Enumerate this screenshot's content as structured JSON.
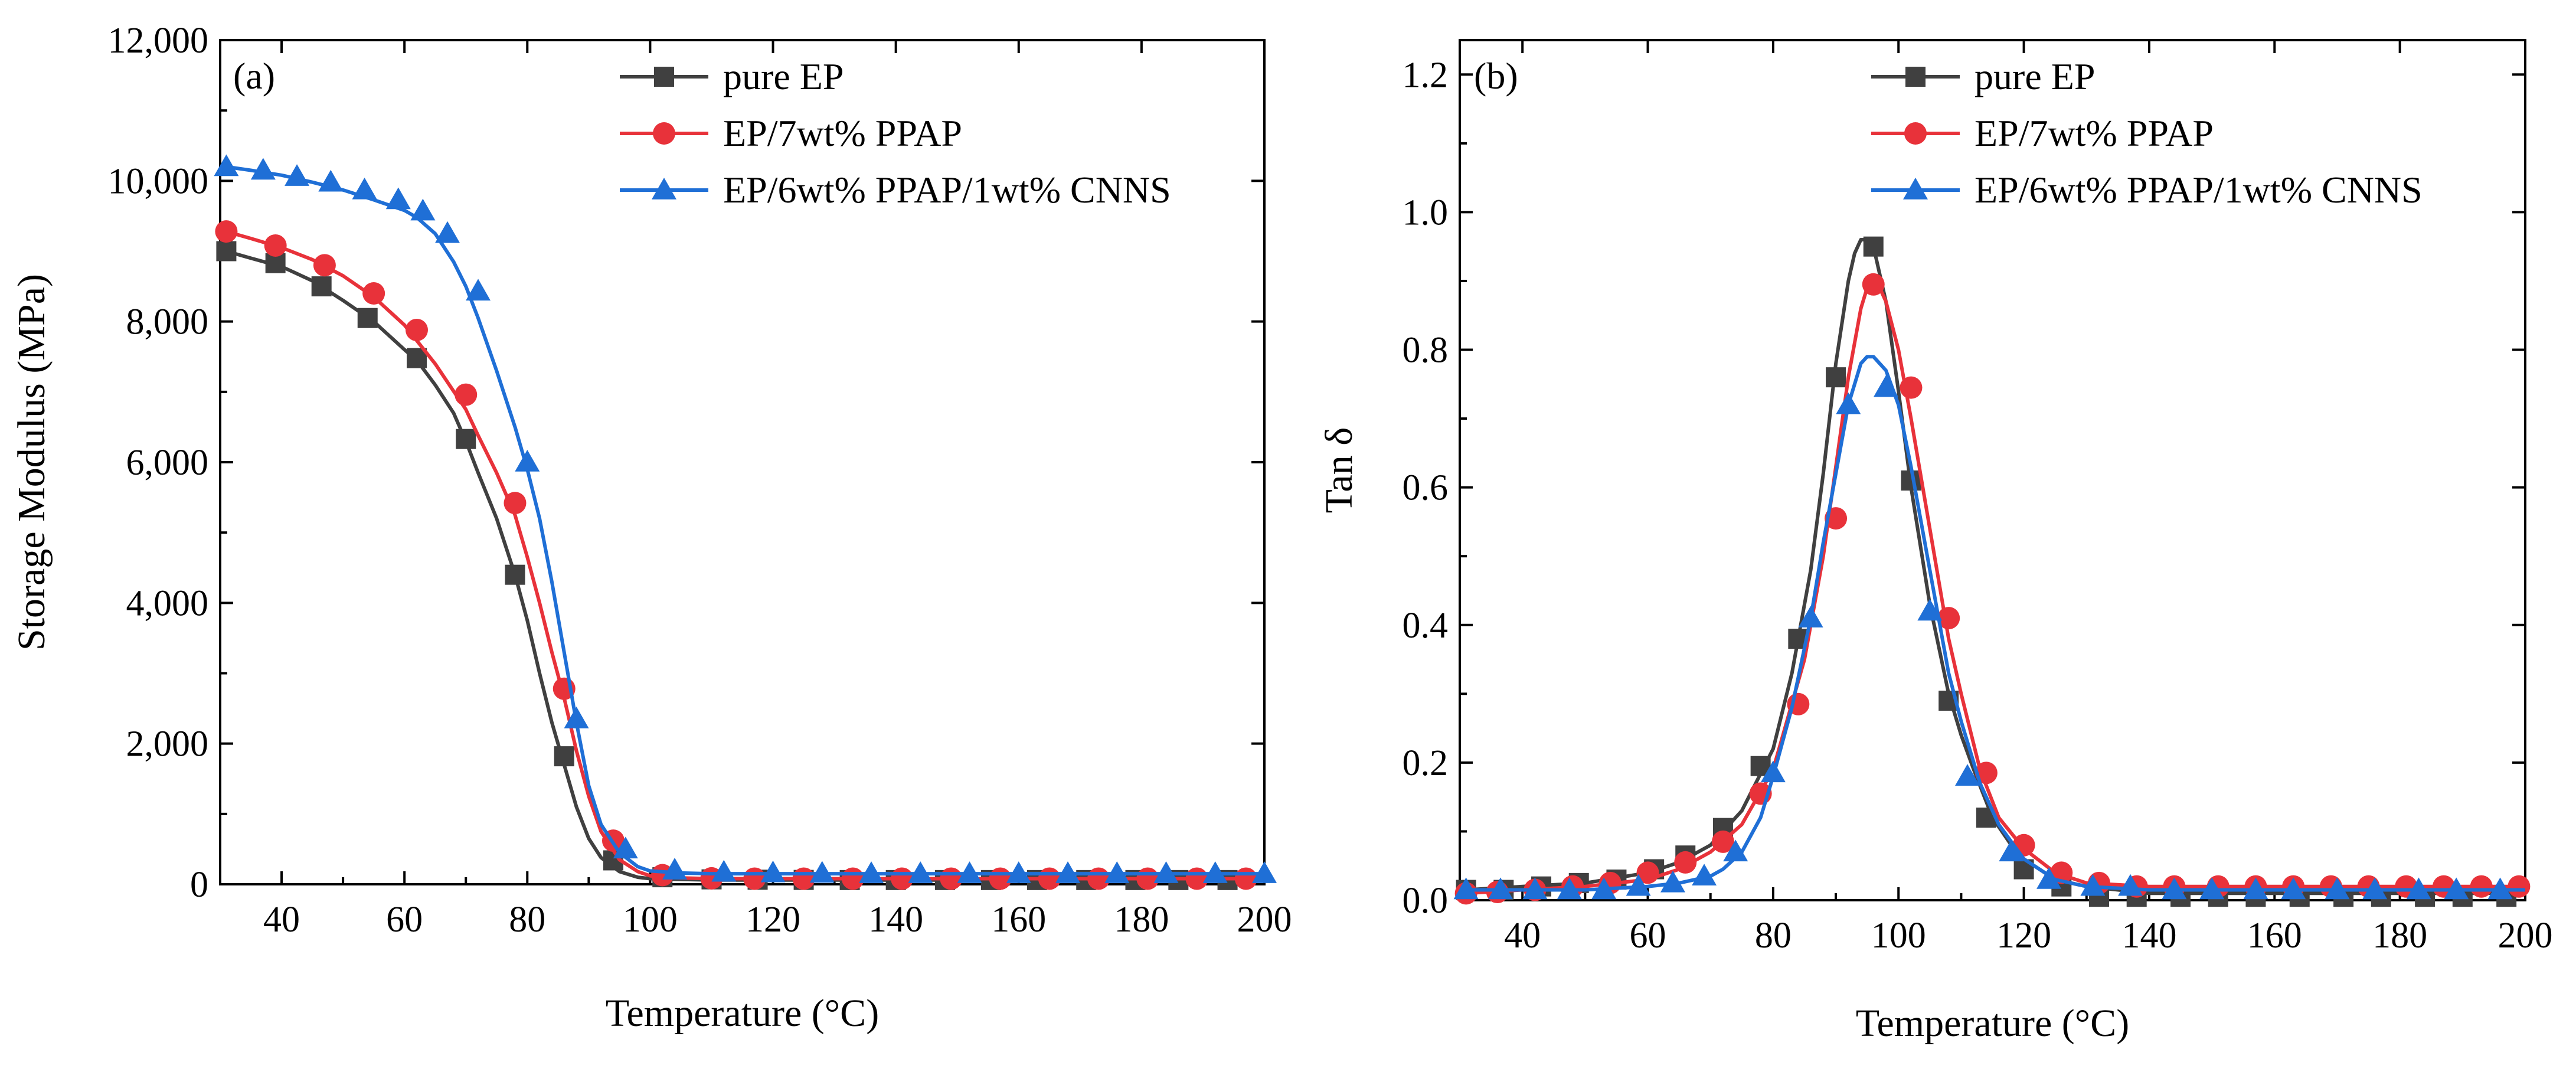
{
  "chart_data": [
    {
      "type": "line",
      "panel_label": "(a)",
      "title": "",
      "xlabel": "Temperature (°C)",
      "ylabel": "Storage Modulus (MPa)",
      "xlim": [
        30,
        200
      ],
      "ylim": [
        0,
        12000
      ],
      "xticks": [
        40,
        60,
        80,
        100,
        120,
        140,
        160,
        180,
        200
      ],
      "xtick_labels": [
        "40",
        "60",
        "80",
        "100",
        "120",
        "140",
        "160",
        "180",
        "200"
      ],
      "yticks": [
        0,
        2000,
        4000,
        6000,
        8000,
        10000,
        12000
      ],
      "ytick_labels": [
        "0",
        "2,000",
        "4,000",
        "6,000",
        "8,000",
        "10,000",
        "12,000"
      ],
      "legend_position": "top-right",
      "series": [
        {
          "name": "pure EP",
          "color": "#404040",
          "marker": "square",
          "x": [
            31,
            35,
            40,
            45,
            50,
            55,
            60,
            62,
            65,
            68,
            70,
            72,
            75,
            78,
            80,
            82,
            84,
            86,
            88,
            90,
            92,
            95,
            98,
            100,
            105,
            110,
            120,
            130,
            140,
            150,
            160,
            170,
            180,
            190,
            200
          ],
          "y": [
            9000,
            8900,
            8780,
            8580,
            8300,
            8000,
            7600,
            7450,
            7100,
            6700,
            6300,
            5850,
            5200,
            4400,
            3750,
            3000,
            2300,
            1700,
            1100,
            650,
            380,
            180,
            100,
            80,
            70,
            60,
            60,
            60,
            60,
            60,
            60,
            60,
            60,
            60,
            60
          ],
          "marker_x": [
            31,
            39,
            46.5,
            54,
            62,
            70,
            78,
            86,
            94,
            102,
            110,
            117.5,
            125,
            132.5,
            140,
            148,
            155.5,
            163,
            171,
            179,
            186,
            194
          ],
          "marker_y": [
            9000,
            8830,
            8500,
            8050,
            7480,
            6330,
            4400,
            1820,
            340,
            100,
            70,
            65,
            62,
            60,
            60,
            60,
            60,
            60,
            60,
            60,
            60,
            60
          ]
        },
        {
          "name": "EP/7wt% PPAP",
          "color": "#e8323a",
          "marker": "circle",
          "x": [
            31,
            35,
            40,
            45,
            50,
            55,
            60,
            65,
            70,
            72,
            75,
            78,
            80,
            82,
            84,
            86,
            88,
            90,
            92,
            95,
            98,
            100,
            105,
            110,
            120,
            130,
            140,
            150,
            160,
            170,
            180,
            190,
            200
          ],
          "y": [
            9280,
            9180,
            9050,
            8880,
            8650,
            8350,
            7950,
            7400,
            6750,
            6380,
            5850,
            5250,
            4650,
            4000,
            3300,
            2650,
            1900,
            1250,
            750,
            350,
            180,
            120,
            90,
            80,
            80,
            80,
            80,
            80,
            80,
            80,
            80,
            80,
            80
          ],
          "marker_x": [
            31,
            39,
            47,
            55,
            62,
            70,
            78,
            86,
            94,
            102,
            110,
            117,
            125,
            133,
            141,
            149,
            157,
            165,
            173,
            181,
            189,
            197
          ],
          "marker_y": [
            9280,
            9080,
            8800,
            8400,
            7880,
            6960,
            5420,
            2780,
            620,
            130,
            85,
            80,
            80,
            80,
            80,
            80,
            80,
            80,
            80,
            80,
            80,
            80
          ]
        },
        {
          "name": "EP/6wt% PPAP/1wt% CNNS",
          "color": "#1f6fd6",
          "marker": "triangle",
          "x": [
            31,
            35,
            40,
            45,
            50,
            55,
            60,
            62,
            65,
            68,
            70,
            72,
            75,
            78,
            80,
            82,
            84,
            86,
            88,
            90,
            92,
            95,
            98,
            100,
            105,
            110,
            120,
            130,
            140,
            150,
            160,
            170,
            180,
            190,
            200
          ],
          "y": [
            10200,
            10150,
            10080,
            9980,
            9870,
            9730,
            9580,
            9480,
            9250,
            8850,
            8500,
            8050,
            7300,
            6500,
            5900,
            5200,
            4300,
            3300,
            2300,
            1400,
            850,
            450,
            250,
            190,
            160,
            150,
            150,
            150,
            150,
            150,
            150,
            150,
            150,
            150,
            150
          ],
          "marker_x": [
            31,
            37,
            42.5,
            48,
            53.5,
            59,
            63,
            67,
            72,
            80,
            88,
            96,
            104,
            112,
            120,
            128,
            136,
            144,
            152,
            160,
            168,
            176,
            184,
            192,
            200
          ],
          "marker_y": [
            10200,
            10150,
            10060,
            9980,
            9870,
            9730,
            9570,
            9250,
            8430,
            6000,
            2350,
            500,
            200,
            170,
            160,
            155,
            150,
            150,
            150,
            150,
            150,
            150,
            150,
            150,
            150
          ]
        }
      ]
    },
    {
      "type": "line",
      "panel_label": "(b)",
      "title": "",
      "xlabel": "Temperature (°C)",
      "ylabel": "Tan δ",
      "xlim": [
        30,
        200
      ],
      "ylim": [
        0,
        1.25
      ],
      "xticks": [
        40,
        60,
        80,
        100,
        120,
        140,
        160,
        180,
        200
      ],
      "xtick_labels": [
        "40",
        "60",
        "80",
        "100",
        "120",
        "140",
        "160",
        "180",
        "200"
      ],
      "yticks": [
        0,
        0.2,
        0.4,
        0.6,
        0.8,
        1.0,
        1.2
      ],
      "ytick_labels": [
        "0.0",
        "0.2",
        "0.4",
        "0.6",
        "0.8",
        "1.0",
        "1.2"
      ],
      "legend_position": "top-right",
      "series": [
        {
          "name": "pure EP",
          "color": "#404040",
          "marker": "square",
          "x": [
            31,
            40,
            50,
            60,
            65,
            70,
            75,
            80,
            83,
            86,
            88,
            90,
            92,
            93,
            94,
            95,
            96,
            98,
            100,
            102,
            105,
            108,
            110,
            112,
            115,
            118,
            120,
            125,
            130,
            140,
            150,
            160,
            170,
            180,
            190,
            200
          ],
          "y": [
            0.015,
            0.02,
            0.025,
            0.04,
            0.055,
            0.08,
            0.13,
            0.22,
            0.33,
            0.48,
            0.62,
            0.78,
            0.9,
            0.94,
            0.96,
            0.96,
            0.95,
            0.87,
            0.74,
            0.6,
            0.43,
            0.3,
            0.24,
            0.19,
            0.12,
            0.08,
            0.06,
            0.03,
            0.02,
            0.01,
            0.01,
            0.01,
            0.01,
            0.01,
            0.01,
            0.01
          ],
          "marker_x": [
            31,
            37,
            43,
            49,
            55,
            61,
            66,
            72,
            78,
            84,
            90,
            96,
            102,
            108,
            114,
            120,
            126,
            132,
            138,
            145,
            151,
            157,
            164,
            171,
            177,
            184,
            190,
            197
          ],
          "marker_y": [
            0.015,
            0.015,
            0.02,
            0.025,
            0.03,
            0.045,
            0.065,
            0.105,
            0.195,
            0.38,
            0.76,
            0.95,
            0.61,
            0.29,
            0.12,
            0.045,
            0.02,
            0.005,
            0.005,
            0.005,
            0.005,
            0.005,
            0.005,
            0.005,
            0.005,
            0.005,
            0.005,
            0.005
          ]
        },
        {
          "name": "EP/7wt% PPAP",
          "color": "#e8323a",
          "marker": "circle",
          "x": [
            31,
            40,
            50,
            60,
            65,
            70,
            75,
            80,
            85,
            88,
            90,
            92,
            94,
            95,
            96,
            97,
            98,
            100,
            102,
            105,
            108,
            110,
            113,
            116,
            120,
            125,
            130,
            140,
            150,
            160,
            170,
            180,
            190,
            200
          ],
          "y": [
            0.01,
            0.015,
            0.02,
            0.03,
            0.045,
            0.07,
            0.11,
            0.19,
            0.35,
            0.5,
            0.63,
            0.76,
            0.86,
            0.89,
            0.9,
            0.89,
            0.87,
            0.8,
            0.7,
            0.54,
            0.38,
            0.3,
            0.19,
            0.12,
            0.075,
            0.04,
            0.025,
            0.02,
            0.02,
            0.02,
            0.02,
            0.02,
            0.02,
            0.02
          ],
          "marker_x": [
            31,
            36,
            42,
            48,
            54,
            60,
            66,
            72,
            78,
            84,
            90,
            96,
            102,
            108,
            114,
            120,
            126,
            132,
            138,
            144,
            151,
            157,
            163,
            169,
            175,
            181,
            187,
            193,
            199
          ],
          "marker_y": [
            0.01,
            0.012,
            0.015,
            0.02,
            0.025,
            0.04,
            0.055,
            0.085,
            0.155,
            0.285,
            0.555,
            0.895,
            0.745,
            0.41,
            0.185,
            0.08,
            0.04,
            0.025,
            0.02,
            0.02,
            0.02,
            0.02,
            0.02,
            0.02,
            0.02,
            0.02,
            0.02,
            0.02,
            0.02
          ]
        },
        {
          "name": "EP/6wt% PPAP/1wt% CNNS",
          "color": "#1f6fd6",
          "marker": "triangle",
          "x": [
            31,
            40,
            50,
            60,
            65,
            70,
            72,
            75,
            78,
            80,
            83,
            86,
            88,
            90,
            92,
            94,
            95,
            96,
            97,
            98,
            100,
            102,
            105,
            108,
            110,
            113,
            116,
            120,
            125,
            130,
            140,
            150,
            160,
            170,
            180,
            190,
            200
          ],
          "y": [
            0.015,
            0.015,
            0.015,
            0.02,
            0.025,
            0.035,
            0.045,
            0.07,
            0.12,
            0.18,
            0.28,
            0.41,
            0.52,
            0.62,
            0.72,
            0.78,
            0.79,
            0.79,
            0.78,
            0.77,
            0.72,
            0.63,
            0.48,
            0.33,
            0.26,
            0.17,
            0.11,
            0.06,
            0.03,
            0.02,
            0.015,
            0.015,
            0.015,
            0.015,
            0.015,
            0.015,
            0.015
          ],
          "marker_x": [
            31,
            36.5,
            42,
            47.5,
            53,
            58.5,
            64,
            69,
            74,
            80,
            86,
            92,
            98,
            105,
            111,
            118,
            124,
            131,
            137,
            144,
            150,
            157,
            163,
            170,
            176,
            183,
            189,
            196
          ],
          "marker_y": [
            0.015,
            0.015,
            0.015,
            0.015,
            0.015,
            0.02,
            0.025,
            0.035,
            0.07,
            0.185,
            0.41,
            0.72,
            0.745,
            0.42,
            0.18,
            0.07,
            0.03,
            0.02,
            0.02,
            0.015,
            0.015,
            0.015,
            0.015,
            0.015,
            0.015,
            0.015,
            0.015,
            0.015
          ]
        }
      ]
    }
  ]
}
